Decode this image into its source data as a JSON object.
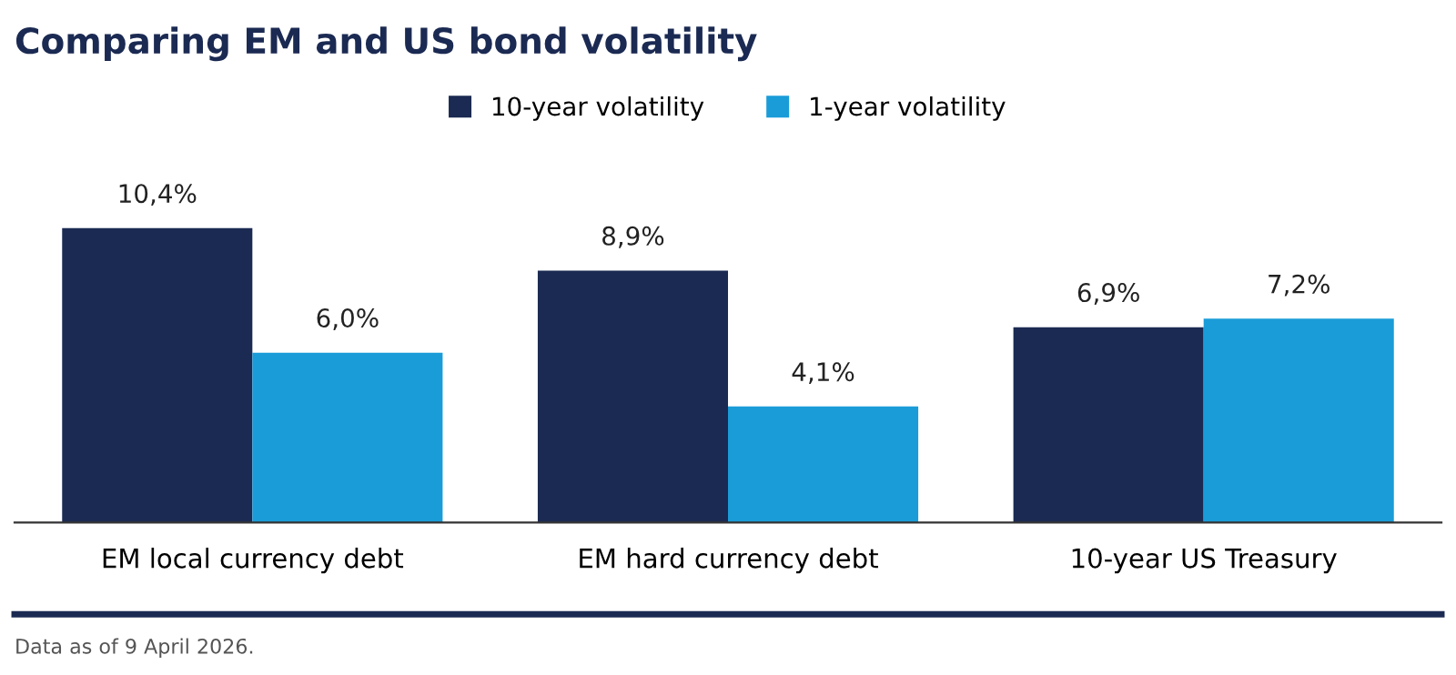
{
  "chart_data": {
    "type": "bar",
    "title": "Comparing EM and US bond volatility",
    "categories": [
      "EM local currency debt",
      "EM hard currency debt",
      "10-year US Treasury"
    ],
    "series": [
      {
        "name": "10-year volatility",
        "color": "#1b2a52",
        "values": [
          10.4,
          8.9,
          6.9
        ],
        "value_labels": [
          "10,4%",
          "8,9%",
          "6,9%"
        ]
      },
      {
        "name": "1-year volatility",
        "color": "#1a9cd8",
        "values": [
          6.0,
          4.1,
          7.2
        ],
        "value_labels": [
          "6,0%",
          "4,1%",
          "7,2%"
        ]
      }
    ],
    "legend": "top",
    "grid": false,
    "annotations": [
      "Data as of 9 April 2026."
    ]
  }
}
